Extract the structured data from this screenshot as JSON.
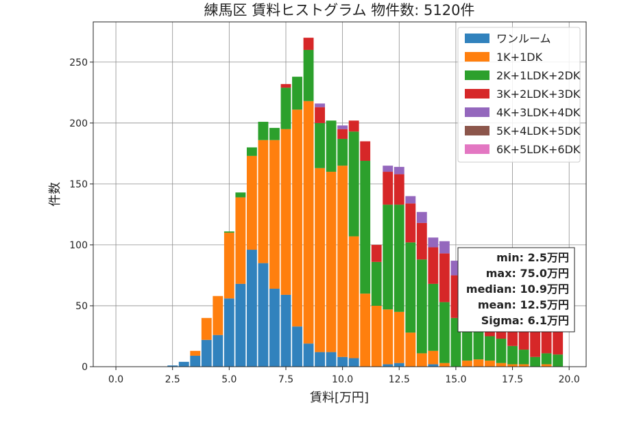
{
  "chart_data": {
    "type": "bar",
    "stacked": true,
    "title": "練馬区 賃料ヒストグラム 物件数: 5120件",
    "xlabel": "賃料[万円]",
    "ylabel": "件数",
    "xlim": [
      -1.0,
      20.75
    ],
    "ylim": [
      0,
      283
    ],
    "xticks": [
      0.0,
      2.5,
      5.0,
      7.5,
      10.0,
      12.5,
      15.0,
      17.5,
      20.0
    ],
    "xtick_labels": [
      "0.0",
      "2.5",
      "5.0",
      "7.5",
      "10.0",
      "12.5",
      "15.0",
      "17.5",
      "20.0"
    ],
    "yticks": [
      0,
      50,
      100,
      150,
      200,
      250
    ],
    "ytick_labels": [
      "0",
      "50",
      "100",
      "150",
      "200",
      "250"
    ],
    "grid": true,
    "legend_position": "top-right",
    "bin_width": 0.5,
    "x": [
      2.5,
      3.0,
      3.5,
      4.0,
      4.5,
      5.0,
      5.5,
      6.0,
      6.5,
      7.0,
      7.5,
      8.0,
      8.5,
      9.0,
      9.5,
      10.0,
      10.5,
      11.0,
      11.5,
      12.0,
      12.5,
      13.0,
      13.5,
      14.0,
      14.5,
      15.0,
      15.5,
      16.0,
      16.5,
      17.0,
      17.5,
      18.0,
      18.5,
      19.0,
      19.5
    ],
    "series": [
      {
        "name": "ワンルーム",
        "color": "#3182bd",
        "values": [
          1,
          4,
          9,
          22,
          26,
          56,
          68,
          96,
          85,
          64,
          59,
          33,
          19,
          12,
          12,
          8,
          7,
          0,
          0,
          2,
          3,
          0,
          0,
          2,
          0,
          0,
          0,
          0,
          0,
          0,
          0,
          0,
          0,
          0,
          0
        ]
      },
      {
        "name": "1K+1DK",
        "color": "#ff7f0e",
        "values": [
          0,
          0,
          4,
          18,
          32,
          54,
          71,
          77,
          101,
          122,
          136,
          178,
          199,
          151,
          148,
          157,
          100,
          60,
          50,
          45,
          42,
          28,
          11,
          11,
          3,
          0,
          5,
          6,
          5,
          3,
          2,
          2,
          0,
          2,
          0
        ]
      },
      {
        "name": "2K+1LDK+2DK",
        "color": "#2ca02c",
        "values": [
          0,
          0,
          0,
          0,
          0,
          1,
          4,
          7,
          15,
          10,
          34,
          27,
          42,
          37,
          42,
          22,
          86,
          109,
          36,
          86,
          88,
          74,
          77,
          55,
          50,
          40,
          30,
          25,
          20,
          20,
          15,
          12,
          8,
          9,
          10
        ]
      },
      {
        "name": "3K+2LDK+3DK",
        "color": "#d62728",
        "values": [
          0,
          0,
          0,
          0,
          0,
          0,
          0,
          0,
          0,
          0,
          3,
          0,
          10,
          13,
          0,
          8,
          9,
          16,
          14,
          27,
          25,
          32,
          30,
          30,
          40,
          35,
          42,
          40,
          40,
          37,
          30,
          27,
          25,
          24,
          21
        ]
      },
      {
        "name": "4K+3LDK+4DK",
        "color": "#9467bd",
        "values": [
          0,
          0,
          0,
          0,
          0,
          0,
          0,
          0,
          0,
          0,
          0,
          0,
          0,
          3,
          0,
          3,
          0,
          0,
          0,
          5,
          6,
          6,
          9,
          8,
          10,
          12,
          5,
          3,
          2,
          2,
          2,
          3,
          2,
          2,
          0
        ]
      },
      {
        "name": "5K+4LDK+5DK",
        "color": "#8c564b",
        "values": [
          0,
          0,
          0,
          0,
          0,
          0,
          0,
          0,
          0,
          0,
          0,
          0,
          0,
          0,
          0,
          0,
          0,
          0,
          0,
          0,
          0,
          0,
          0,
          0,
          0,
          0,
          0,
          0,
          0,
          0,
          0,
          0,
          0,
          0,
          0
        ]
      },
      {
        "name": "6K+5LDK+6DK",
        "color": "#e377c2",
        "values": [
          0,
          0,
          0,
          0,
          0,
          0,
          0,
          0,
          0,
          0,
          0,
          0,
          0,
          0,
          0,
          0,
          0,
          0,
          0,
          0,
          0,
          0,
          0,
          0,
          0,
          0,
          0,
          0,
          0,
          0,
          0,
          0,
          0,
          0,
          0
        ]
      }
    ],
    "stats": [
      "min: 2.5万円",
      "max: 75.0万円",
      "median: 10.9万円",
      "mean: 12.5万円",
      "Sigma: 6.1万円"
    ]
  }
}
